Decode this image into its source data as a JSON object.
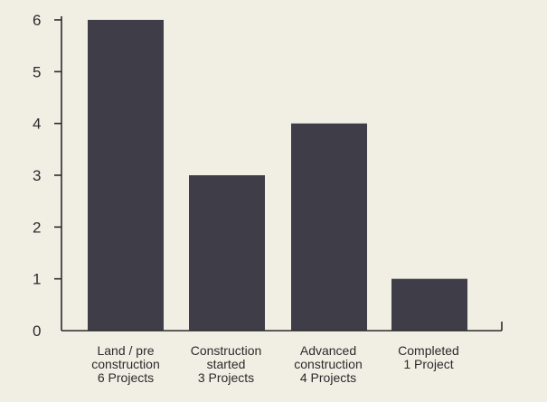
{
  "chart_data": {
    "type": "bar",
    "categories": [
      [
        "Land / pre",
        "construction",
        "6 Projects"
      ],
      [
        "Construction",
        "started",
        "3 Projects"
      ],
      [
        "Advanced",
        "construction",
        "4 Projects"
      ],
      [
        "Completed",
        "1 Project"
      ]
    ],
    "values": [
      6,
      3,
      4,
      1
    ],
    "ylim": [
      0,
      6
    ],
    "yticks": [
      "0",
      "1",
      "2",
      "3",
      "4",
      "5",
      "6"
    ],
    "grid": false,
    "legend": "none",
    "colors": {
      "background": "#f1eee4",
      "bar": "#3e3d48",
      "axis": "#2b2b2b"
    }
  }
}
